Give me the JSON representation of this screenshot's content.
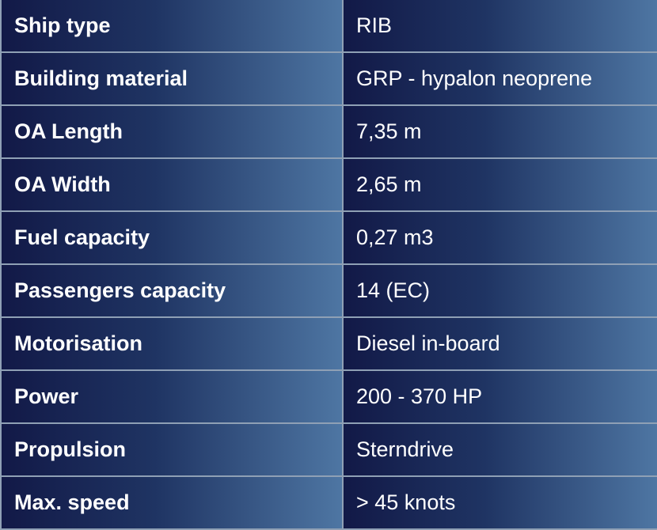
{
  "specs": [
    {
      "label": "Ship type",
      "value": "RIB"
    },
    {
      "label": "Building material",
      "value": "GRP - hypalon neoprene"
    },
    {
      "label": "OA Length",
      "value": "7,35 m"
    },
    {
      "label": "OA Width",
      "value": "2,65 m"
    },
    {
      "label": "Fuel capacity",
      "value": "0,27 m3"
    },
    {
      "label": "Passengers capacity",
      "value": "14 (EC)"
    },
    {
      "label": "Motorisation",
      "value": "Diesel in-board"
    },
    {
      "label": "Power",
      "value": "200 - 370 HP"
    },
    {
      "label": "Propulsion",
      "value": "Sterndrive"
    },
    {
      "label": "Max. speed",
      "value": "> 45 knots"
    }
  ],
  "colors": {
    "gradient_dark": "#121947",
    "gradient_light": "#4e76a3",
    "border": "#8fa0b5",
    "text": "#ffffff"
  }
}
